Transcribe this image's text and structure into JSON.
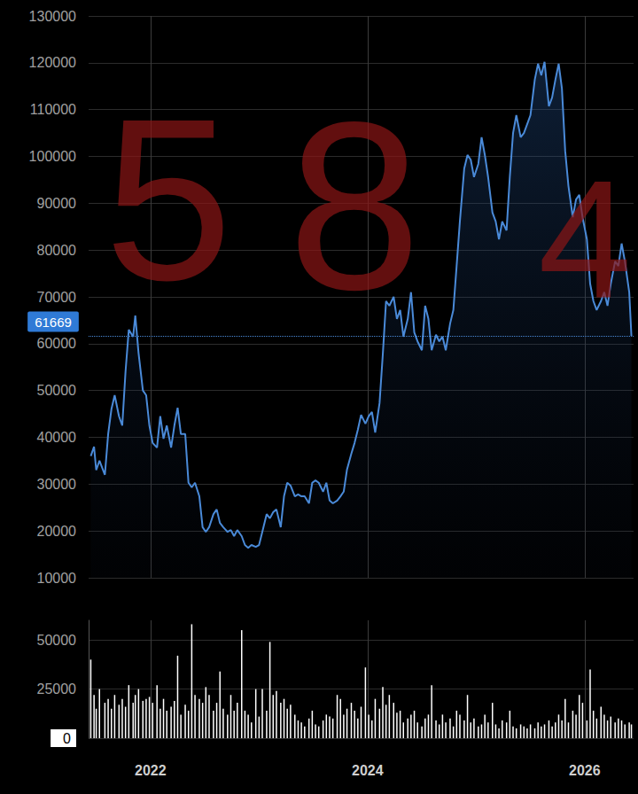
{
  "chart_data": [
    {
      "type": "line",
      "color": "#4a8ad8",
      "grid": true,
      "tick_labels": "y",
      "xlim": [
        2021.43,
        2026.45
      ],
      "xticks": [
        2022,
        2024,
        2026
      ],
      "ylim": [
        10000,
        130000
      ],
      "yticks": [
        10000,
        20000,
        30000,
        40000,
        50000,
        60000,
        70000,
        80000,
        90000,
        100000,
        110000,
        120000,
        130000
      ],
      "last_value": 61669,
      "annotations": [
        "5",
        "8",
        "4"
      ],
      "x": [
        2021.45,
        2021.48,
        2021.5,
        2021.53,
        2021.58,
        2021.61,
        2021.64,
        2021.67,
        2021.71,
        2021.74,
        2021.77,
        2021.8,
        2021.84,
        2021.86,
        2021.89,
        2021.93,
        2021.96,
        2021.99,
        2022.02,
        2022.06,
        2022.09,
        2022.12,
        2022.15,
        2022.19,
        2022.22,
        2022.25,
        2022.28,
        2022.32,
        2022.35,
        2022.38,
        2022.41,
        2022.45,
        2022.48,
        2022.51,
        2022.54,
        2022.58,
        2022.61,
        2022.64,
        2022.67,
        2022.71,
        2022.74,
        2022.77,
        2022.8,
        2022.84,
        2022.87,
        2022.9,
        2022.93,
        2022.97,
        2023.0,
        2023.03,
        2023.07,
        2023.1,
        2023.13,
        2023.16,
        2023.2,
        2023.23,
        2023.26,
        2023.29,
        2023.33,
        2023.36,
        2023.39,
        2023.42,
        2023.46,
        2023.49,
        2023.52,
        2023.55,
        2023.59,
        2023.62,
        2023.65,
        2023.68,
        2023.72,
        2023.75,
        2023.78,
        2023.81,
        2023.85,
        2023.88,
        2023.91,
        2023.94,
        2023.98,
        2024.01,
        2024.04,
        2024.07,
        2024.11,
        2024.14,
        2024.17,
        2024.2,
        2024.24,
        2024.27,
        2024.3,
        2024.33,
        2024.37,
        2024.4,
        2024.43,
        2024.46,
        2024.5,
        2024.53,
        2024.56,
        2024.59,
        2024.63,
        2024.66,
        2024.69,
        2024.72,
        2024.76,
        2024.79,
        2024.82,
        2024.85,
        2024.89,
        2024.92,
        2024.95,
        2024.98,
        2025.02,
        2025.05,
        2025.08,
        2025.11,
        2025.15,
        2025.18,
        2025.21,
        2025.24,
        2025.28,
        2025.31,
        2025.34,
        2025.37,
        2025.41,
        2025.44,
        2025.47,
        2025.5,
        2025.54,
        2025.57,
        2025.6,
        2025.63,
        2025.67,
        2025.7,
        2025.73,
        2025.76,
        2025.79,
        2025.82,
        2025.85,
        2025.89,
        2025.92,
        2025.95,
        2025.98,
        2026.02,
        2026.05,
        2026.08,
        2026.11,
        2026.15,
        2026.18,
        2026.21,
        2026.24,
        2026.28,
        2026.31,
        2026.34,
        2026.37,
        2026.41,
        2026.43
      ],
      "values": [
        36000,
        38000,
        33000,
        35000,
        32000,
        40700,
        46000,
        49000,
        44500,
        42500,
        54000,
        63000,
        61500,
        66000,
        58000,
        50000,
        49000,
        42500,
        38800,
        37800,
        44500,
        39700,
        42500,
        37800,
        42500,
        46300,
        40700,
        40700,
        30300,
        29300,
        30300,
        27400,
        20800,
        19800,
        20800,
        23600,
        24600,
        21700,
        20800,
        19800,
        20200,
        18900,
        20200,
        18900,
        17000,
        16400,
        17000,
        16600,
        17000,
        19800,
        23600,
        22700,
        24000,
        24600,
        20800,
        27400,
        30300,
        29700,
        27400,
        27800,
        27400,
        27400,
        25900,
        30300,
        30800,
        30300,
        28400,
        30300,
        26500,
        25900,
        26500,
        27400,
        28400,
        33100,
        36500,
        38800,
        41600,
        44800,
        42900,
        44500,
        45400,
        41000,
        47300,
        57700,
        69100,
        68100,
        70000,
        65300,
        67200,
        61500,
        65300,
        71000,
        62400,
        60500,
        58600,
        68100,
        65300,
        58600,
        61900,
        60500,
        61500,
        58600,
        64300,
        67200,
        76600,
        86100,
        97400,
        100300,
        99300,
        95600,
        98400,
        104100,
        100300,
        95600,
        88000,
        86100,
        82300,
        86100,
        84200,
        95600,
        105000,
        108800,
        104100,
        105000,
        106900,
        108800,
        116400,
        119800,
        117300,
        120200,
        110700,
        112600,
        116400,
        119800,
        114500,
        101200,
        93700,
        87000,
        90800,
        91800,
        87000,
        82300,
        72800,
        69100,
        67200,
        69100,
        71000,
        68100,
        72800,
        77600,
        76600,
        81400,
        77600,
        71000,
        61669
      ]
    },
    {
      "type": "bar",
      "color": "#ffffff",
      "grid": true,
      "tick_labels": true,
      "xlim": [
        2021.43,
        2026.45
      ],
      "xticks": [
        2022,
        2024,
        2026
      ],
      "ylim": [
        0,
        60000
      ],
      "yticks": [
        0,
        25000,
        50000
      ],
      "x": [
        2021.45,
        2021.48,
        2021.5,
        2021.53,
        2021.58,
        2021.61,
        2021.64,
        2021.67,
        2021.71,
        2021.74,
        2021.77,
        2021.8,
        2021.84,
        2021.86,
        2021.89,
        2021.93,
        2021.96,
        2021.99,
        2022.02,
        2022.06,
        2022.09,
        2022.12,
        2022.15,
        2022.19,
        2022.22,
        2022.25,
        2022.28,
        2022.32,
        2022.35,
        2022.38,
        2022.41,
        2022.45,
        2022.48,
        2022.51,
        2022.54,
        2022.58,
        2022.61,
        2022.64,
        2022.67,
        2022.71,
        2022.74,
        2022.77,
        2022.8,
        2022.84,
        2022.87,
        2022.9,
        2022.93,
        2022.97,
        2023.0,
        2023.03,
        2023.07,
        2023.1,
        2023.13,
        2023.16,
        2023.2,
        2023.23,
        2023.26,
        2023.29,
        2023.33,
        2023.36,
        2023.39,
        2023.42,
        2023.46,
        2023.49,
        2023.52,
        2023.55,
        2023.59,
        2023.62,
        2023.65,
        2023.68,
        2023.72,
        2023.75,
        2023.78,
        2023.81,
        2023.85,
        2023.88,
        2023.91,
        2023.94,
        2023.98,
        2024.01,
        2024.04,
        2024.07,
        2024.11,
        2024.14,
        2024.17,
        2024.2,
        2024.24,
        2024.27,
        2024.3,
        2024.33,
        2024.37,
        2024.4,
        2024.43,
        2024.46,
        2024.5,
        2024.53,
        2024.56,
        2024.59,
        2024.63,
        2024.66,
        2024.69,
        2024.72,
        2024.76,
        2024.79,
        2024.82,
        2024.85,
        2024.89,
        2024.92,
        2024.95,
        2024.98,
        2025.02,
        2025.05,
        2025.08,
        2025.11,
        2025.15,
        2025.18,
        2025.21,
        2025.24,
        2025.28,
        2025.31,
        2025.34,
        2025.37,
        2025.41,
        2025.44,
        2025.47,
        2025.5,
        2025.54,
        2025.57,
        2025.6,
        2025.63,
        2025.67,
        2025.7,
        2025.73,
        2025.76,
        2025.79,
        2025.82,
        2025.85,
        2025.89,
        2025.92,
        2025.95,
        2025.98,
        2026.02,
        2026.05,
        2026.08,
        2026.11,
        2026.15,
        2026.18,
        2026.21,
        2026.24,
        2026.28,
        2026.31,
        2026.34,
        2026.37,
        2026.41,
        2026.43
      ],
      "values": [
        40000,
        22000,
        15000,
        25000,
        18000,
        20000,
        15000,
        22000,
        17000,
        20000,
        16000,
        27000,
        18000,
        22000,
        25000,
        19000,
        20000,
        21000,
        18000,
        27000,
        15000,
        20000,
        14000,
        16000,
        19000,
        42000,
        12000,
        17000,
        14000,
        58000,
        22000,
        20000,
        18000,
        26000,
        22000,
        14000,
        18000,
        34000,
        15000,
        12000,
        22000,
        14000,
        18000,
        55000,
        14000,
        12000,
        8000,
        25000,
        11000,
        25000,
        14000,
        49000,
        22000,
        24000,
        18000,
        20000,
        15000,
        17000,
        12000,
        9000,
        8000,
        6000,
        10000,
        14000,
        7000,
        6000,
        9000,
        12000,
        11000,
        10000,
        22000,
        20000,
        12000,
        15000,
        18000,
        14000,
        10000,
        16000,
        36000,
        12000,
        9000,
        20000,
        15000,
        26000,
        17000,
        22000,
        18000,
        13000,
        14000,
        8000,
        10000,
        12000,
        14000,
        8000,
        6000,
        10000,
        12000,
        27000,
        9000,
        7000,
        12000,
        8000,
        10000,
        6000,
        14000,
        12000,
        9000,
        22000,
        8000,
        10000,
        6000,
        7000,
        12000,
        8000,
        18000,
        7000,
        5000,
        9000,
        8000,
        14000,
        6000,
        5000,
        7000,
        6000,
        5000,
        7000,
        5000,
        8000,
        6000,
        7000,
        9000,
        6000,
        8000,
        12000,
        9000,
        20000,
        8000,
        14000,
        12000,
        22000,
        18000,
        9000,
        35000,
        14000,
        10000,
        16000,
        12000,
        9000,
        11000,
        8000,
        10000,
        9000,
        7000,
        8000,
        7000
      ]
    }
  ]
}
